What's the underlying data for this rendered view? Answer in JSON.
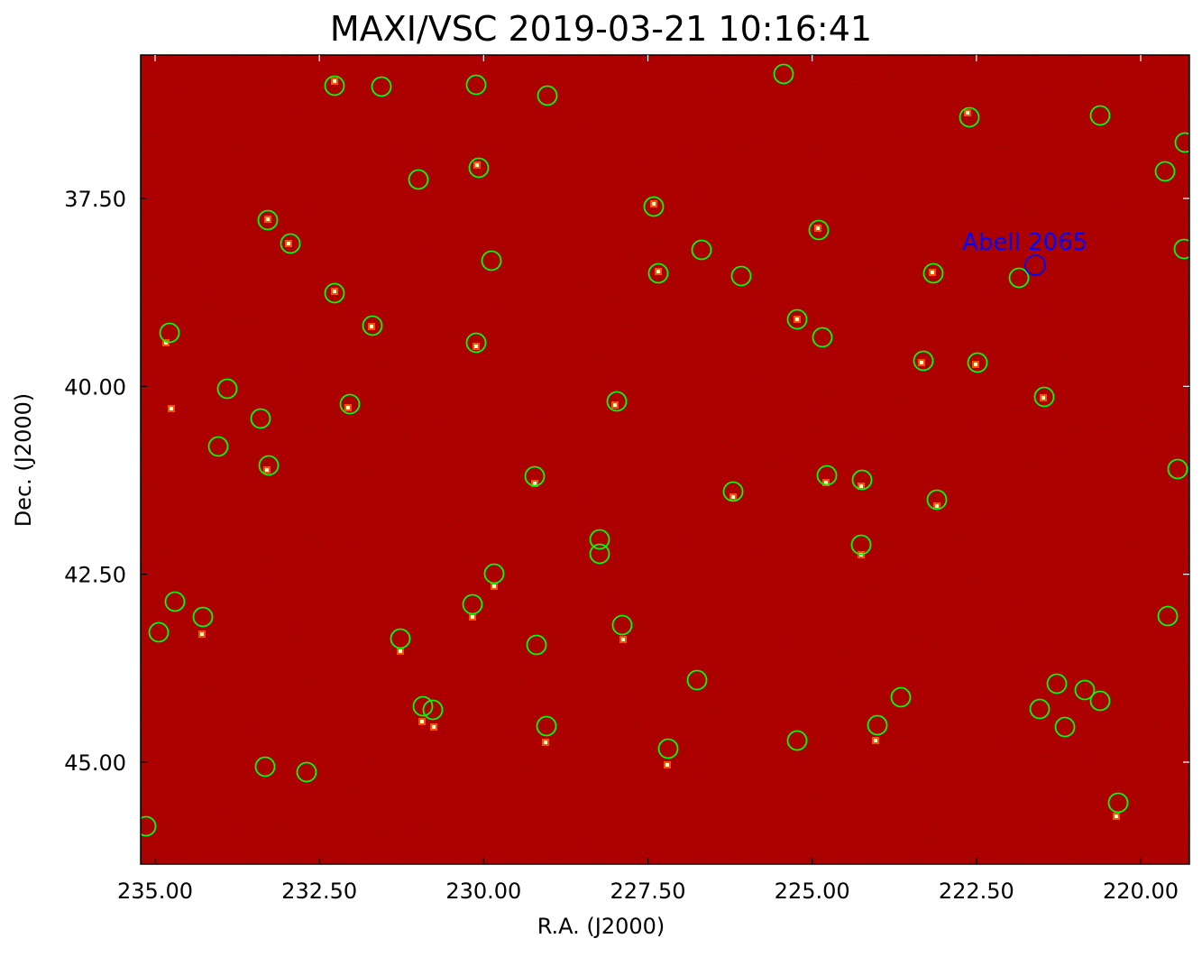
{
  "title": "MAXI/VSC 2019-03-21 10:16:41",
  "xlabel": "R.A. (J2000)",
  "ylabel": "Dec. (J2000)",
  "x_ticks": [
    "235.00",
    "232.50",
    "230.00",
    "227.50",
    "225.00",
    "222.50",
    "220.00"
  ],
  "y_ticks": [
    "37.50",
    "40.00",
    "42.50",
    "45.00"
  ],
  "x_tick_values": [
    235.0,
    232.5,
    230.0,
    227.5,
    225.0,
    222.5,
    220.0
  ],
  "y_tick_values": [
    37.5,
    40.0,
    42.5,
    45.0
  ],
  "colors": {
    "background_map": "#8b0000",
    "source_marker": "#00ff00",
    "target_marker": "#0000ff",
    "target_label": "#0000ff"
  },
  "target": {
    "label": "Abell 2065"
  },
  "marker_count": 74
}
